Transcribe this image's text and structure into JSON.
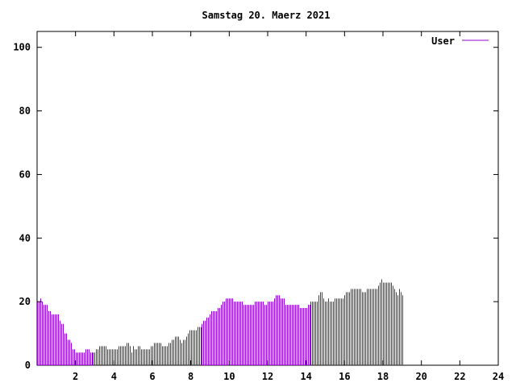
{
  "chart_data": {
    "type": "bar",
    "title": "Samstag 20. Maerz 2021",
    "xlabel": "",
    "ylabel": "",
    "xlim": [
      0,
      24
    ],
    "ylim": [
      0,
      105
    ],
    "x_ticks": [
      2,
      4,
      6,
      8,
      10,
      12,
      14,
      16,
      18,
      20,
      22,
      24
    ],
    "y_ticks": [
      0,
      20,
      40,
      60,
      80,
      100
    ],
    "grid": false,
    "legend_position": "top-right",
    "bar_color": "#9400d3",
    "series": [
      {
        "name": "User",
        "x_start": 0,
        "x_step": 0.0833,
        "values": [
          20,
          20,
          21,
          20,
          19,
          19,
          19,
          17,
          17,
          16,
          16,
          16,
          16,
          16,
          14,
          13,
          13,
          10,
          10,
          8,
          8,
          7,
          5,
          5,
          4,
          4,
          4,
          4,
          4,
          4,
          5,
          5,
          5,
          4,
          4,
          4,
          4,
          5,
          5,
          6,
          6,
          6,
          6,
          6,
          5,
          5,
          5,
          5,
          5,
          5,
          5,
          6,
          6,
          6,
          6,
          6,
          7,
          7,
          6,
          4,
          6,
          5,
          5,
          6,
          6,
          5,
          5,
          5,
          5,
          5,
          5,
          6,
          6,
          7,
          7,
          7,
          7,
          7,
          6,
          6,
          6,
          6,
          7,
          7,
          8,
          8,
          9,
          9,
          9,
          8,
          7,
          8,
          8,
          9,
          10,
          11,
          11,
          11,
          11,
          11,
          12,
          12,
          12,
          13,
          14,
          14,
          15,
          15,
          16,
          17,
          17,
          17,
          17,
          18,
          18,
          19,
          20,
          20,
          21,
          21,
          21,
          21,
          21,
          20,
          20,
          20,
          20,
          20,
          20,
          19,
          19,
          19,
          19,
          19,
          19,
          19,
          20,
          20,
          20,
          20,
          20,
          20,
          19,
          19,
          20,
          20,
          20,
          20,
          21,
          22,
          22,
          22,
          21,
          21,
          21,
          19,
          19,
          19,
          19,
          19,
          19,
          19,
          19,
          19,
          18,
          18,
          18,
          18,
          18,
          19,
          19,
          20,
          20,
          20,
          20,
          20,
          22,
          23,
          23,
          21,
          20,
          20,
          21,
          20,
          20,
          20,
          21,
          21,
          21,
          21,
          21,
          21,
          22,
          23,
          23,
          23,
          24,
          24,
          24,
          24,
          24,
          24,
          24,
          23,
          23,
          23,
          24,
          24,
          24,
          24,
          24,
          24,
          24,
          25,
          26,
          27,
          26,
          26,
          26,
          26,
          26,
          26,
          25,
          24,
          23,
          22,
          24,
          23,
          22
        ]
      }
    ]
  }
}
